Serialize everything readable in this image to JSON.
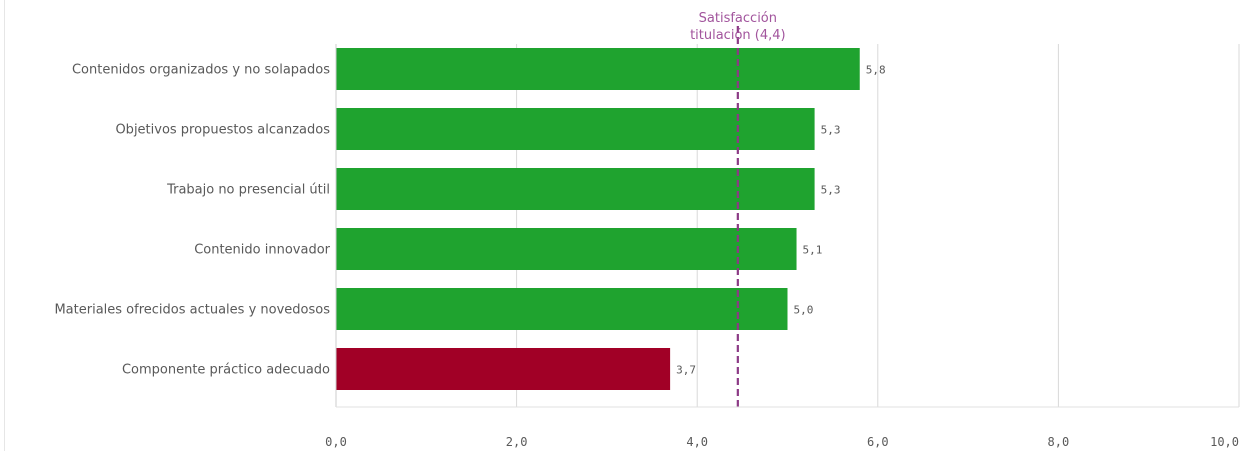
{
  "chart_data": {
    "type": "bar",
    "orientation": "horizontal",
    "categories": [
      "Contenidos organizados y no solapados",
      "Objetivos propuestos alcanzados",
      "Trabajo no presencial útil",
      "Contenido innovador",
      "Materiales ofrecidos actuales y novedosos",
      "Componente práctico adecuado"
    ],
    "values": [
      5.8,
      5.3,
      5.3,
      5.1,
      5.0,
      3.7
    ],
    "value_labels": [
      "5,8",
      "5,3",
      "5,3",
      "5,1",
      "5,0",
      "3,7"
    ],
    "bar_colors": [
      "#1fa32f",
      "#1fa32f",
      "#1fa32f",
      "#1fa32f",
      "#1fa32f",
      "#a10026"
    ],
    "xlim": [
      0,
      10
    ],
    "ticks": [
      0,
      2,
      4,
      6,
      8,
      10
    ],
    "tick_labels": [
      "0,0",
      "2,0",
      "4,0",
      "6,0",
      "8,0",
      "10,0"
    ],
    "grid": true,
    "reference_line": {
      "value": 4.45,
      "label_lines": [
        "Satisfacción",
        "titulación (4,4)"
      ],
      "color": "#8c3a86",
      "style": "dashed"
    }
  }
}
